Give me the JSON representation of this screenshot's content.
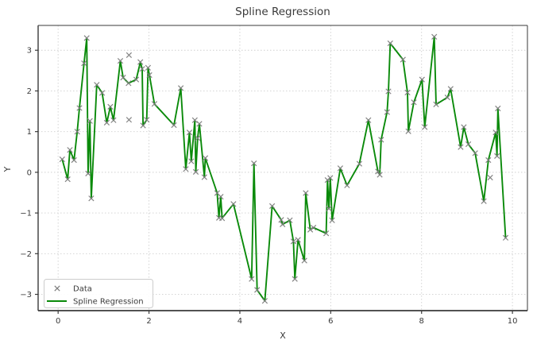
{
  "title": "Spline Regression",
  "axes": {
    "xlabel": "X",
    "ylabel": "Y",
    "xlim": [
      -0.44,
      10.33
    ],
    "ylim": [
      -3.4,
      3.61
    ],
    "x_ticks": [
      {
        "value": 0,
        "label": "0"
      },
      {
        "value": 2,
        "label": "2"
      },
      {
        "value": 4,
        "label": "4"
      },
      {
        "value": 6,
        "label": "6"
      },
      {
        "value": 8,
        "label": "8"
      },
      {
        "value": 10,
        "label": "10"
      }
    ],
    "y_ticks": [
      {
        "value": -3,
        "label": "−3"
      },
      {
        "value": -2,
        "label": "−2"
      },
      {
        "value": -1,
        "label": "−1"
      },
      {
        "value": 0,
        "label": "0"
      },
      {
        "value": 1,
        "label": "1"
      },
      {
        "value": 2,
        "label": "2"
      },
      {
        "value": 3,
        "label": "3"
      }
    ],
    "grid": "dotted"
  },
  "legend": {
    "position": "lower-left",
    "items": [
      {
        "label": "Data",
        "swatch": "x-marker"
      },
      {
        "label": "Spline Regression",
        "swatch": "line"
      }
    ]
  },
  "colors": {
    "line": "#0a8a0a",
    "marker": "#7d7d7d",
    "grid": "#cfcfcf",
    "spine": "#3a3a3a",
    "text": "#3a3a3a",
    "background": "#ffffff"
  },
  "chart_data": {
    "type": "scatter+line",
    "title": "Spline Regression",
    "xlabel": "X",
    "ylabel": "Y",
    "xlim": [
      -0.44,
      10.33
    ],
    "ylim": [
      -3.4,
      3.61
    ],
    "grid": true,
    "legend_position": "lower left",
    "series": [
      {
        "name": "Data",
        "type": "scatter",
        "marker": "x",
        "points": [
          [
            0.09,
            0.32
          ],
          [
            0.21,
            -0.17
          ],
          [
            0.26,
            0.55
          ],
          [
            0.35,
            0.3
          ],
          [
            0.42,
            1.0
          ],
          [
            0.47,
            1.58
          ],
          [
            0.57,
            2.68
          ],
          [
            0.63,
            3.3
          ],
          [
            0.66,
            -0.03
          ],
          [
            0.7,
            1.26
          ],
          [
            0.73,
            -0.64
          ],
          [
            0.85,
            2.15
          ],
          [
            0.97,
            1.95
          ],
          [
            1.07,
            1.22
          ],
          [
            1.15,
            1.61
          ],
          [
            1.22,
            1.28
          ],
          [
            1.37,
            2.74
          ],
          [
            1.43,
            2.33
          ],
          [
            1.55,
            2.19
          ],
          [
            1.56,
            2.88
          ],
          [
            1.56,
            1.29
          ],
          [
            1.72,
            2.28
          ],
          [
            1.81,
            2.71
          ],
          [
            1.85,
            2.54
          ],
          [
            1.87,
            1.15
          ],
          [
            1.95,
            1.29
          ],
          [
            1.98,
            2.57
          ],
          [
            2.01,
            2.39
          ],
          [
            2.12,
            1.68
          ],
          [
            2.55,
            1.16
          ],
          [
            2.7,
            2.07
          ],
          [
            2.81,
            0.08
          ],
          [
            2.89,
            0.98
          ],
          [
            2.93,
            0.27
          ],
          [
            3.01,
            1.28
          ],
          [
            3.03,
            0.01
          ],
          [
            3.07,
            0.84
          ],
          [
            3.11,
            1.19
          ],
          [
            3.22,
            -0.12
          ],
          [
            3.24,
            0.35
          ],
          [
            3.5,
            -0.51
          ],
          [
            3.54,
            -1.12
          ],
          [
            3.58,
            -0.6
          ],
          [
            3.61,
            -1.13
          ],
          [
            3.86,
            -0.78
          ],
          [
            4.26,
            -2.62
          ],
          [
            4.31,
            0.22
          ],
          [
            4.38,
            -2.89
          ],
          [
            4.55,
            -3.16
          ],
          [
            4.71,
            -0.83
          ],
          [
            4.91,
            -1.17
          ],
          [
            4.94,
            -1.28
          ],
          [
            5.1,
            -1.18
          ],
          [
            5.18,
            -1.7
          ],
          [
            5.21,
            -2.62
          ],
          [
            5.28,
            -1.66
          ],
          [
            5.42,
            -2.17
          ],
          [
            5.45,
            -0.51
          ],
          [
            5.55,
            -1.41
          ],
          [
            5.62,
            -1.36
          ],
          [
            5.9,
            -1.5
          ],
          [
            5.93,
            -0.19
          ],
          [
            5.96,
            -0.89
          ],
          [
            5.99,
            -0.14
          ],
          [
            6.03,
            -1.18
          ],
          [
            6.21,
            0.1
          ],
          [
            6.36,
            -0.32
          ],
          [
            6.63,
            0.21
          ],
          [
            6.83,
            1.28
          ],
          [
            7.04,
            0.02
          ],
          [
            7.08,
            -0.06
          ],
          [
            7.11,
            0.8
          ],
          [
            7.24,
            1.48
          ],
          [
            7.27,
            1.99
          ],
          [
            7.31,
            3.17
          ],
          [
            7.59,
            2.77
          ],
          [
            7.69,
            1.96
          ],
          [
            7.71,
            1.01
          ],
          [
            7.83,
            1.72
          ],
          [
            8.01,
            2.28
          ],
          [
            8.07,
            1.11
          ],
          [
            8.28,
            3.33
          ],
          [
            8.32,
            1.67
          ],
          [
            8.57,
            1.84
          ],
          [
            8.64,
            2.05
          ],
          [
            8.86,
            0.62
          ],
          [
            8.93,
            1.11
          ],
          [
            9.03,
            0.69
          ],
          [
            9.18,
            0.47
          ],
          [
            9.37,
            -0.71
          ],
          [
            9.47,
            0.3
          ],
          [
            9.51,
            -0.13
          ],
          [
            9.63,
            0.98
          ],
          [
            9.66,
            0.4
          ],
          [
            9.68,
            1.57
          ],
          [
            9.85,
            -1.61
          ]
        ]
      },
      {
        "name": "Spline Regression",
        "type": "line",
        "note": "line passes through the Data points in x order, except the outlier indices below",
        "outlier_indices_not_on_line": [
          19,
          20,
          91
        ]
      }
    ]
  }
}
